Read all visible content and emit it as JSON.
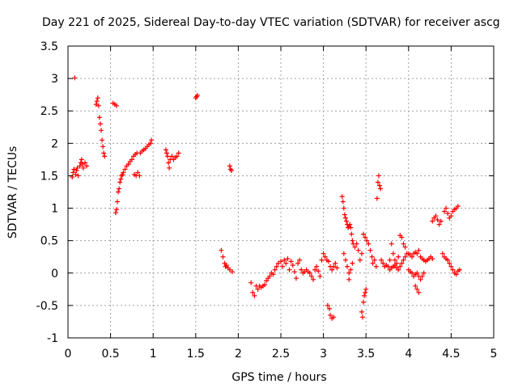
{
  "chart_data": {
    "type": "scatter",
    "title": "Day 221 of 2025, Sidereal Day-to-day VTEC variation (SDTVAR) for receiver ascg",
    "xlabel": "GPS time / hours",
    "ylabel": "SDTVAR / TECUs",
    "xlim": [
      0,
      5
    ],
    "ylim": [
      -1,
      3.5
    ],
    "x_ticks": [
      0,
      0.5,
      1,
      1.5,
      2,
      2.5,
      3,
      3.5,
      4,
      4.5,
      5
    ],
    "x_tick_labels": [
      "0",
      "0.5",
      "1",
      "1.5",
      "2",
      "2.5",
      "3",
      "3.5",
      "4",
      "4.5",
      "5"
    ],
    "y_ticks": [
      -1,
      -0.5,
      0,
      0.5,
      1,
      1.5,
      2,
      2.5,
      3,
      3.5
    ],
    "y_tick_labels": [
      "-1",
      "-0.5",
      "0",
      "0.5",
      "1",
      "1.5",
      "2",
      "2.5",
      "3",
      "3.5"
    ],
    "grid": true,
    "marker": "+",
    "color": "#ff0000",
    "series": [
      {
        "name": "SDTVAR",
        "points": [
          [
            0.05,
            1.48
          ],
          [
            0.06,
            1.55
          ],
          [
            0.07,
            1.6
          ],
          [
            0.08,
            3.01
          ],
          [
            0.09,
            1.52
          ],
          [
            0.1,
            1.58
          ],
          [
            0.11,
            1.62
          ],
          [
            0.12,
            1.5
          ],
          [
            0.14,
            1.65
          ],
          [
            0.15,
            1.7
          ],
          [
            0.16,
            1.75
          ],
          [
            0.17,
            1.68
          ],
          [
            0.18,
            1.62
          ],
          [
            0.2,
            1.7
          ],
          [
            0.22,
            1.65
          ],
          [
            0.33,
            2.6
          ],
          [
            0.34,
            2.65
          ],
          [
            0.35,
            2.7
          ],
          [
            0.36,
            2.58
          ],
          [
            0.37,
            2.4
          ],
          [
            0.38,
            2.3
          ],
          [
            0.39,
            2.2
          ],
          [
            0.4,
            2.05
          ],
          [
            0.41,
            1.95
          ],
          [
            0.42,
            1.85
          ],
          [
            0.43,
            1.8
          ],
          [
            0.53,
            2.62
          ],
          [
            0.55,
            2.6
          ],
          [
            0.57,
            2.58
          ],
          [
            0.56,
            0.93
          ],
          [
            0.57,
            0.98
          ],
          [
            0.58,
            1.1
          ],
          [
            0.59,
            1.25
          ],
          [
            0.6,
            1.3
          ],
          [
            0.61,
            1.4
          ],
          [
            0.62,
            1.45
          ],
          [
            0.63,
            1.5
          ],
          [
            0.64,
            1.52
          ],
          [
            0.65,
            1.55
          ],
          [
            0.67,
            1.6
          ],
          [
            0.69,
            1.65
          ],
          [
            0.71,
            1.68
          ],
          [
            0.73,
            1.72
          ],
          [
            0.75,
            1.75
          ],
          [
            0.77,
            1.8
          ],
          [
            0.79,
            1.83
          ],
          [
            0.81,
            1.85
          ],
          [
            0.78,
            1.52
          ],
          [
            0.8,
            1.5
          ],
          [
            0.82,
            1.55
          ],
          [
            0.84,
            1.5
          ],
          [
            0.85,
            1.85
          ],
          [
            0.87,
            1.88
          ],
          [
            0.89,
            1.9
          ],
          [
            0.91,
            1.92
          ],
          [
            0.93,
            1.95
          ],
          [
            0.95,
            1.98
          ],
          [
            0.97,
            2.0
          ],
          [
            0.98,
            2.05
          ],
          [
            1.15,
            1.9
          ],
          [
            1.16,
            1.85
          ],
          [
            1.17,
            1.8
          ],
          [
            1.18,
            1.7
          ],
          [
            1.19,
            1.62
          ],
          [
            1.2,
            1.75
          ],
          [
            1.22,
            1.8
          ],
          [
            1.24,
            1.75
          ],
          [
            1.26,
            1.78
          ],
          [
            1.28,
            1.8
          ],
          [
            1.3,
            1.85
          ],
          [
            1.5,
            2.7
          ],
          [
            1.51,
            2.72
          ],
          [
            1.52,
            2.74
          ],
          [
            1.8,
            0.35
          ],
          [
            1.82,
            0.25
          ],
          [
            1.84,
            0.15
          ],
          [
            1.85,
            0.1
          ],
          [
            1.86,
            0.12
          ],
          [
            1.88,
            0.08
          ],
          [
            1.9,
            0.05
          ],
          [
            1.9,
            1.65
          ],
          [
            1.91,
            1.6
          ],
          [
            1.92,
            1.58
          ],
          [
            1.93,
            0.02
          ],
          [
            2.15,
            -0.15
          ],
          [
            2.17,
            -0.3
          ],
          [
            2.19,
            -0.35
          ],
          [
            2.21,
            -0.2
          ],
          [
            2.23,
            -0.25
          ],
          [
            2.25,
            -0.2
          ],
          [
            2.27,
            -0.22
          ],
          [
            2.29,
            -0.2
          ],
          [
            2.31,
            -0.18
          ],
          [
            2.33,
            -0.12
          ],
          [
            2.35,
            -0.08
          ],
          [
            2.37,
            -0.05
          ],
          [
            2.39,
            0.0
          ],
          [
            2.41,
            -0.02
          ],
          [
            2.43,
            0.05
          ],
          [
            2.45,
            0.1
          ],
          [
            2.47,
            0.15
          ],
          [
            2.5,
            0.18
          ],
          [
            2.52,
            0.1
          ],
          [
            2.54,
            0.2
          ],
          [
            2.56,
            0.15
          ],
          [
            2.58,
            0.22
          ],
          [
            2.6,
            0.05
          ],
          [
            2.62,
            0.18
          ],
          [
            2.64,
            0.12
          ],
          [
            2.66,
            0.02
          ],
          [
            2.68,
            -0.08
          ],
          [
            2.7,
            0.15
          ],
          [
            2.72,
            0.2
          ],
          [
            2.74,
            0.05
          ],
          [
            2.76,
            0.0
          ],
          [
            2.78,
            0.02
          ],
          [
            2.8,
            0.05
          ],
          [
            2.82,
            0.02
          ],
          [
            2.84,
            0.0
          ],
          [
            2.86,
            -0.05
          ],
          [
            2.88,
            -0.1
          ],
          [
            2.9,
            0.05
          ],
          [
            2.92,
            0.1
          ],
          [
            2.94,
            0.03
          ],
          [
            2.96,
            -0.05
          ],
          [
            2.98,
            0.2
          ],
          [
            3.0,
            0.3
          ],
          [
            3.02,
            0.25
          ],
          [
            3.04,
            0.2
          ],
          [
            3.06,
            0.18
          ],
          [
            3.08,
            0.1
          ],
          [
            3.1,
            0.05
          ],
          [
            3.12,
            0.1
          ],
          [
            3.14,
            0.15
          ],
          [
            3.16,
            0.08
          ],
          [
            3.05,
            -0.5
          ],
          [
            3.07,
            -0.55
          ],
          [
            3.08,
            -0.65
          ],
          [
            3.1,
            -0.7
          ],
          [
            3.12,
            -0.68
          ],
          [
            3.22,
            1.18
          ],
          [
            3.23,
            1.1
          ],
          [
            3.24,
            1.0
          ],
          [
            3.25,
            0.9
          ],
          [
            3.26,
            0.85
          ],
          [
            3.27,
            0.8
          ],
          [
            3.28,
            0.75
          ],
          [
            3.29,
            0.7
          ],
          [
            3.3,
            0.72
          ],
          [
            3.31,
            0.75
          ],
          [
            3.32,
            0.7
          ],
          [
            3.33,
            0.6
          ],
          [
            3.34,
            0.5
          ],
          [
            3.24,
            0.3
          ],
          [
            3.26,
            0.2
          ],
          [
            3.28,
            0.1
          ],
          [
            3.3,
            0.0
          ],
          [
            3.3,
            -0.1
          ],
          [
            3.32,
            0.05
          ],
          [
            3.34,
            0.15
          ],
          [
            3.35,
            0.45
          ],
          [
            3.37,
            0.4
          ],
          [
            3.39,
            0.45
          ],
          [
            3.41,
            0.35
          ],
          [
            3.43,
            0.2
          ],
          [
            3.45,
            0.3
          ],
          [
            3.45,
            -0.6
          ],
          [
            3.46,
            -0.68
          ],
          [
            3.47,
            -0.45
          ],
          [
            3.48,
            -0.35
          ],
          [
            3.49,
            -0.3
          ],
          [
            3.5,
            -0.25
          ],
          [
            3.47,
            0.6
          ],
          [
            3.49,
            0.55
          ],
          [
            3.51,
            0.5
          ],
          [
            3.53,
            0.45
          ],
          [
            3.55,
            0.35
          ],
          [
            3.57,
            0.25
          ],
          [
            3.58,
            0.15
          ],
          [
            3.6,
            0.2
          ],
          [
            3.62,
            0.1
          ],
          [
            3.63,
            1.15
          ],
          [
            3.64,
            1.4
          ],
          [
            3.65,
            1.5
          ],
          [
            3.66,
            1.35
          ],
          [
            3.67,
            1.3
          ],
          [
            3.68,
            0.2
          ],
          [
            3.7,
            0.15
          ],
          [
            3.72,
            0.1
          ],
          [
            3.74,
            0.12
          ],
          [
            3.76,
            0.1
          ],
          [
            3.78,
            0.2
          ],
          [
            3.8,
            0.45
          ],
          [
            3.82,
            0.3
          ],
          [
            3.84,
            0.2
          ],
          [
            3.86,
            0.15
          ],
          [
            3.88,
            0.25
          ],
          [
            3.9,
            0.58
          ],
          [
            3.92,
            0.55
          ],
          [
            3.94,
            0.45
          ],
          [
            3.96,
            0.4
          ],
          [
            3.98,
            0.3
          ],
          [
            3.78,
            0.05
          ],
          [
            3.8,
            0.08
          ],
          [
            3.82,
            0.1
          ],
          [
            3.84,
            0.12
          ],
          [
            3.86,
            0.08
          ],
          [
            3.88,
            0.05
          ],
          [
            3.9,
            0.1
          ],
          [
            3.92,
            0.15
          ],
          [
            3.94,
            0.2
          ],
          [
            3.96,
            0.25
          ],
          [
            4.0,
            0.3
          ],
          [
            4.02,
            0.28
          ],
          [
            4.04,
            0.25
          ],
          [
            4.06,
            0.3
          ],
          [
            4.08,
            0.32
          ],
          [
            4.1,
            0.3
          ],
          [
            4.12,
            0.35
          ],
          [
            4.14,
            0.25
          ],
          [
            4.16,
            0.22
          ],
          [
            4.18,
            0.2
          ],
          [
            4.2,
            0.18
          ],
          [
            4.22,
            0.2
          ],
          [
            4.24,
            0.22
          ],
          [
            4.26,
            0.25
          ],
          [
            4.28,
            0.22
          ],
          [
            4.0,
            0.05
          ],
          [
            4.02,
            0.02
          ],
          [
            4.04,
            0.0
          ],
          [
            4.06,
            -0.05
          ],
          [
            4.08,
            -0.02
          ],
          [
            4.1,
            0.0
          ],
          [
            4.12,
            -0.05
          ],
          [
            4.14,
            -0.1
          ],
          [
            4.16,
            -0.05
          ],
          [
            4.18,
            0.0
          ],
          [
            4.08,
            -0.2
          ],
          [
            4.1,
            -0.25
          ],
          [
            4.12,
            -0.3
          ],
          [
            4.28,
            0.8
          ],
          [
            4.3,
            0.85
          ],
          [
            4.32,
            0.88
          ],
          [
            4.34,
            0.82
          ],
          [
            4.36,
            0.75
          ],
          [
            4.38,
            0.8
          ],
          [
            4.42,
            0.95
          ],
          [
            4.44,
            1.0
          ],
          [
            4.46,
            0.92
          ],
          [
            4.48,
            0.85
          ],
          [
            4.5,
            0.88
          ],
          [
            4.52,
            0.95
          ],
          [
            4.54,
            0.98
          ],
          [
            4.56,
            1.0
          ],
          [
            4.58,
            1.03
          ],
          [
            4.4,
            0.3
          ],
          [
            4.42,
            0.25
          ],
          [
            4.44,
            0.22
          ],
          [
            4.46,
            0.2
          ],
          [
            4.48,
            0.15
          ],
          [
            4.5,
            0.1
          ],
          [
            4.52,
            0.05
          ],
          [
            4.54,
            0.0
          ],
          [
            4.56,
            -0.02
          ],
          [
            4.58,
            0.03
          ],
          [
            4.6,
            0.05
          ]
        ]
      }
    ]
  }
}
